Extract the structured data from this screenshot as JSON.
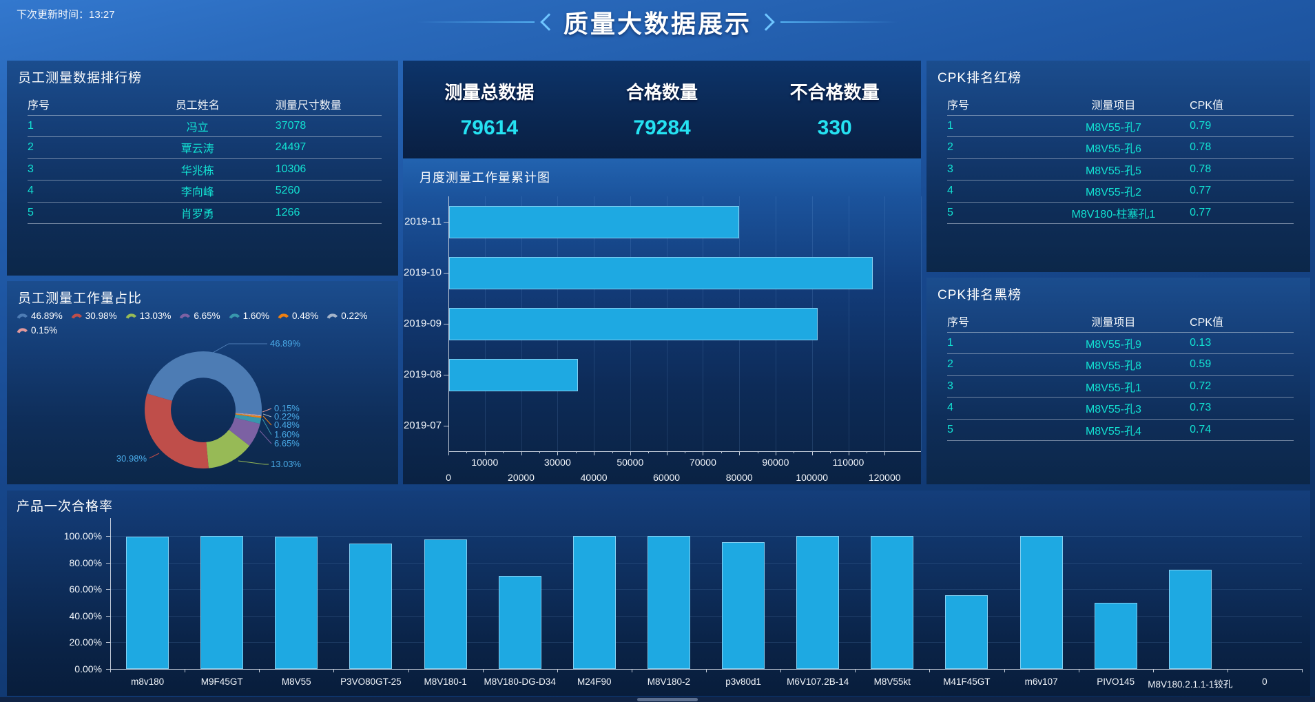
{
  "header": {
    "next_update_label": "下次更新时间：",
    "next_update_time": "13:27",
    "title": "质量大数据展示"
  },
  "kpi": {
    "items": [
      {
        "label": "测量总数据",
        "value": "79614"
      },
      {
        "label": "合格数量",
        "value": "79284"
      },
      {
        "label": "不合格数量",
        "value": "330"
      }
    ]
  },
  "employee_ranking": {
    "title": "员工测量数据排行榜",
    "columns": [
      "序号",
      "员工姓名",
      "测量尺寸数量"
    ],
    "rows": [
      {
        "no": "1",
        "name": "冯立",
        "count": "37078"
      },
      {
        "no": "2",
        "name": "覃云涛",
        "count": "24497"
      },
      {
        "no": "3",
        "name": "华兆栋",
        "count": "10306"
      },
      {
        "no": "4",
        "name": "李向峰",
        "count": "5260"
      },
      {
        "no": "5",
        "name": "肖罗勇",
        "count": "1266"
      }
    ]
  },
  "cpk_red": {
    "title": "CPK排名红榜",
    "columns": [
      "序号",
      "测量项目",
      "CPK值"
    ],
    "rows": [
      {
        "no": "1",
        "item": "M8V55-孔7",
        "cpk": "0.79"
      },
      {
        "no": "2",
        "item": "M8V55-孔6",
        "cpk": "0.78"
      },
      {
        "no": "3",
        "item": "M8V55-孔5",
        "cpk": "0.78"
      },
      {
        "no": "4",
        "item": "M8V55-孔2",
        "cpk": "0.77"
      },
      {
        "no": "5",
        "item": "M8V180-柱塞孔1",
        "cpk": "0.77"
      }
    ]
  },
  "cpk_black": {
    "title": "CPK排名黑榜",
    "columns": [
      "序号",
      "测量项目",
      "CPK值"
    ],
    "rows": [
      {
        "no": "1",
        "item": "M8V55-孔9",
        "cpk": "0.13"
      },
      {
        "no": "2",
        "item": "M8V55-孔8",
        "cpk": "0.59"
      },
      {
        "no": "3",
        "item": "M8V55-孔1",
        "cpk": "0.72"
      },
      {
        "no": "4",
        "item": "M8V55-孔3",
        "cpk": "0.73"
      },
      {
        "no": "5",
        "item": "M8V55-孔4",
        "cpk": "0.74"
      }
    ]
  },
  "colors": {
    "bar_fill": "#1ea9e2",
    "cyan_value": "#25e2f2",
    "table_cyan": "#12e2d2",
    "donut_label": "#4aabe8",
    "accent_line": "#55b2f2"
  },
  "chart_data": [
    {
      "type": "pie",
      "title": "员工测量工作量占比",
      "labels": [
        "46.89%",
        "30.98%",
        "13.03%",
        "6.65%",
        "1.60%",
        "0.48%",
        "0.22%",
        "0.15%"
      ],
      "values": [
        46.89,
        30.98,
        13.03,
        6.65,
        1.6,
        0.48,
        0.22,
        0.15
      ],
      "colors": [
        "#4d7cb4",
        "#bf4e4a",
        "#97ba56",
        "#7c61a3",
        "#3897ad",
        "#ee8012",
        "#a3b3c9",
        "#e3999c"
      ],
      "donut": true,
      "start_angle_deg": -73.8,
      "clockwise_order": [
        0,
        7,
        6,
        5,
        4,
        3,
        2,
        1
      ],
      "legend_position": "top"
    },
    {
      "type": "bar-horizontal",
      "title": "月度测量工作量累计图",
      "categories": [
        "2019-11",
        "2019-10",
        "2019-09",
        "2019-08",
        "2019-07"
      ],
      "values": [
        79700,
        116500,
        101300,
        35400,
        0
      ],
      "xlim": [
        0,
        130000
      ],
      "x_ticks": [
        "0",
        "10000",
        "20000",
        "30000",
        "40000",
        "50000",
        "60000",
        "70000",
        "80000",
        "90000",
        "100000",
        "110000",
        "120000"
      ],
      "grid": true,
      "bar_color": "#1ea9e2"
    },
    {
      "type": "bar",
      "title": "产品一次合格率",
      "categories": [
        "m8v180",
        "M9F45GT",
        "M8V55",
        "P3VO80GT-25",
        "M8V180-1",
        "M8V180-DG-D34",
        "M24F90",
        "M8V180-2",
        "p3v80d1",
        "M6V107.2B-14",
        "M8V55kt",
        "M41F45GT",
        "m6v107",
        "PIVO145",
        "M8V180.2.1.1-1铰孔",
        "0"
      ],
      "values": [
        99.5,
        100,
        99.3,
        94.5,
        97.6,
        69.8,
        100,
        100,
        95.2,
        100,
        100,
        55.3,
        100,
        49.7,
        74.5,
        0
      ],
      "ylim": [
        0,
        100
      ],
      "y_ticks": [
        "0.00%",
        "20.00%",
        "40.00%",
        "60.00%",
        "80.00%",
        "100.00%"
      ],
      "grid": true,
      "bar_color": "#1ea9e2"
    }
  ]
}
